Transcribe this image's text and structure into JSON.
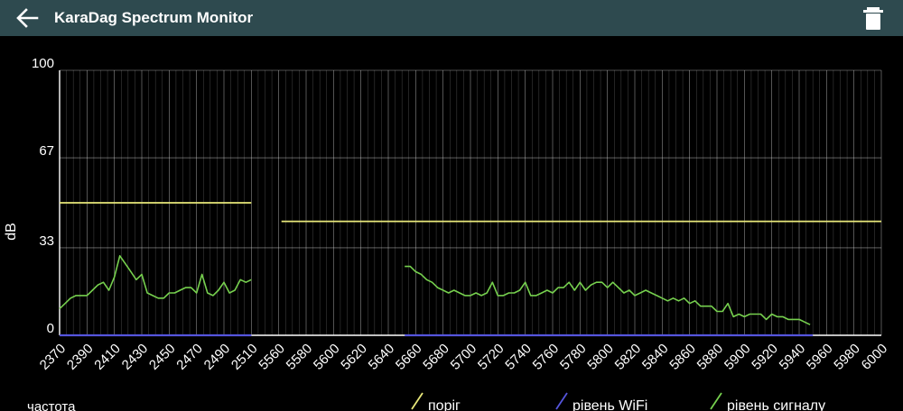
{
  "app": {
    "title": "KaraDag Spectrum Monitor",
    "back_icon": "arrow-left-icon",
    "delete_icon": "trash-icon"
  },
  "colors": {
    "appbar": "#2e4a4f",
    "background": "#000000",
    "grid": "#ffffff",
    "threshold": "#e8e87a",
    "wifi": "#5555dd",
    "signal": "#76d04e"
  },
  "chart_data": {
    "type": "line",
    "ylabel": "dB",
    "xlabel": "частота",
    "ylim": [
      0,
      100
    ],
    "yticks": [
      0,
      33,
      67,
      100
    ],
    "x_categories": [
      "2370",
      "2390",
      "2410",
      "2430",
      "2450",
      "2470",
      "2490",
      "2510",
      "5560",
      "5580",
      "5600",
      "5620",
      "5640",
      "5660",
      "5680",
      "5700",
      "5720",
      "5740",
      "5760",
      "5780",
      "5800",
      "5820",
      "5840",
      "5860",
      "5880",
      "5900",
      "5920",
      "5940",
      "5960",
      "5980",
      "6000"
    ],
    "grid": true,
    "legend_position": "bottom",
    "series": [
      {
        "name": "поріг",
        "color": "#e8e87a",
        "segments": [
          {
            "x": [
              2370,
              2514
            ],
            "y": [
              50,
              50
            ]
          },
          {
            "x": [
              5562,
              6000
            ],
            "y": [
              43,
              43
            ]
          }
        ]
      },
      {
        "name": "рівень WiFi",
        "color": "#5555dd",
        "segments": [
          {
            "x": [
              2370,
              2514
            ],
            "y": [
              0,
              0
            ]
          },
          {
            "x": [
              5652,
              5950
            ],
            "y": [
              0,
              0
            ]
          }
        ]
      },
      {
        "name": "рівень сигналу",
        "color": "#76d04e",
        "segments": [
          {
            "x": [
              2370,
              2374,
              2378,
              2382,
              2386,
              2390,
              2394,
              2398,
              2402,
              2406,
              2410,
              2414,
              2418,
              2422,
              2426,
              2430,
              2434,
              2438,
              2442,
              2446,
              2450,
              2454,
              2458,
              2462,
              2466,
              2470,
              2474,
              2478,
              2482,
              2486,
              2490,
              2494,
              2498,
              2502,
              2506,
              2510,
              2514
            ],
            "y": [
              10,
              12,
              14,
              15,
              15,
              15,
              17,
              19,
              20,
              17,
              22,
              30,
              27,
              24,
              21,
              23,
              16,
              15,
              14,
              14,
              16,
              16,
              17,
              18,
              18,
              16,
              23,
              16,
              15,
              17,
              20,
              16,
              17,
              21,
              20,
              21,
              21
            ]
          },
          {
            "x": [
              5652,
              5656,
              5660,
              5664,
              5668,
              5672,
              5676,
              5680,
              5684,
              5688,
              5692,
              5696,
              5700,
              5704,
              5708,
              5712,
              5716,
              5720,
              5724,
              5728,
              5732,
              5736,
              5740,
              5744,
              5748,
              5752,
              5756,
              5760,
              5764,
              5768,
              5772,
              5776,
              5780,
              5784,
              5788,
              5792,
              5796,
              5800,
              5804,
              5808,
              5812,
              5816,
              5820,
              5824,
              5828,
              5832,
              5836,
              5840,
              5844,
              5848,
              5852,
              5856,
              5860,
              5864,
              5868,
              5872,
              5876,
              5880,
              5884,
              5888,
              5892,
              5896,
              5900,
              5904,
              5908,
              5912,
              5916,
              5920,
              5924,
              5928,
              5932,
              5936,
              5940,
              5944,
              5948
            ],
            "y": [
              26,
              26,
              24,
              23,
              21,
              20,
              18,
              17,
              16,
              17,
              16,
              15,
              15,
              16,
              15,
              16,
              20,
              15,
              15,
              16,
              16,
              17,
              20,
              15,
              15,
              16,
              17,
              16,
              18,
              18,
              20,
              17,
              20,
              17,
              19,
              20,
              20,
              18,
              20,
              18,
              16,
              17,
              15,
              16,
              17,
              16,
              15,
              14,
              13,
              14,
              13,
              14,
              12,
              13,
              11,
              11,
              11,
              9,
              9,
              12,
              7,
              8,
              7,
              8,
              8,
              8,
              6,
              8,
              7,
              7,
              6,
              6,
              6,
              5,
              4
            ]
          }
        ]
      }
    ]
  }
}
